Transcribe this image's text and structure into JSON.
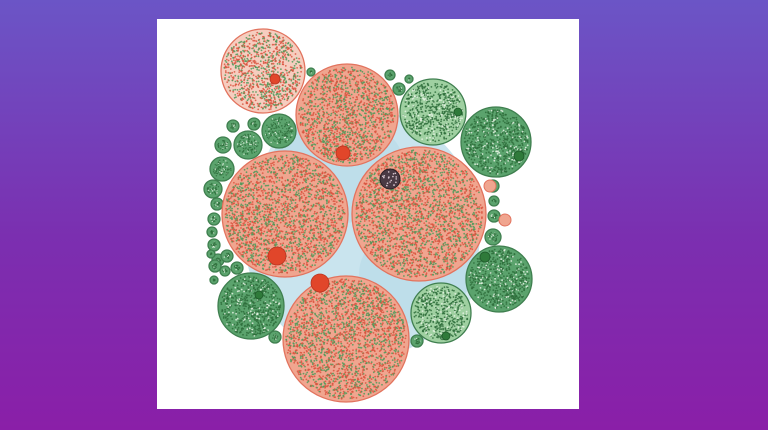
{
  "colors": {
    "background_top": "#6b55c6",
    "background_bottom": "#8a1fa8",
    "panel": "#ffffff",
    "red_fill": "#f0a58f",
    "red_fill_light": "#f6cdbf",
    "red_stroke": "#e2735e",
    "red_dot": "#e1462a",
    "green_fill": "#5ba36d",
    "green_fill_light": "#9fd0a1",
    "green_stroke": "#3f7f4f",
    "green_dot": "#2f7a3a",
    "link": "#b7dbe8",
    "selected_node": "#4a3a44"
  },
  "diagram": {
    "type": "circle-packing",
    "node_categories": [
      "red",
      "green"
    ]
  }
}
